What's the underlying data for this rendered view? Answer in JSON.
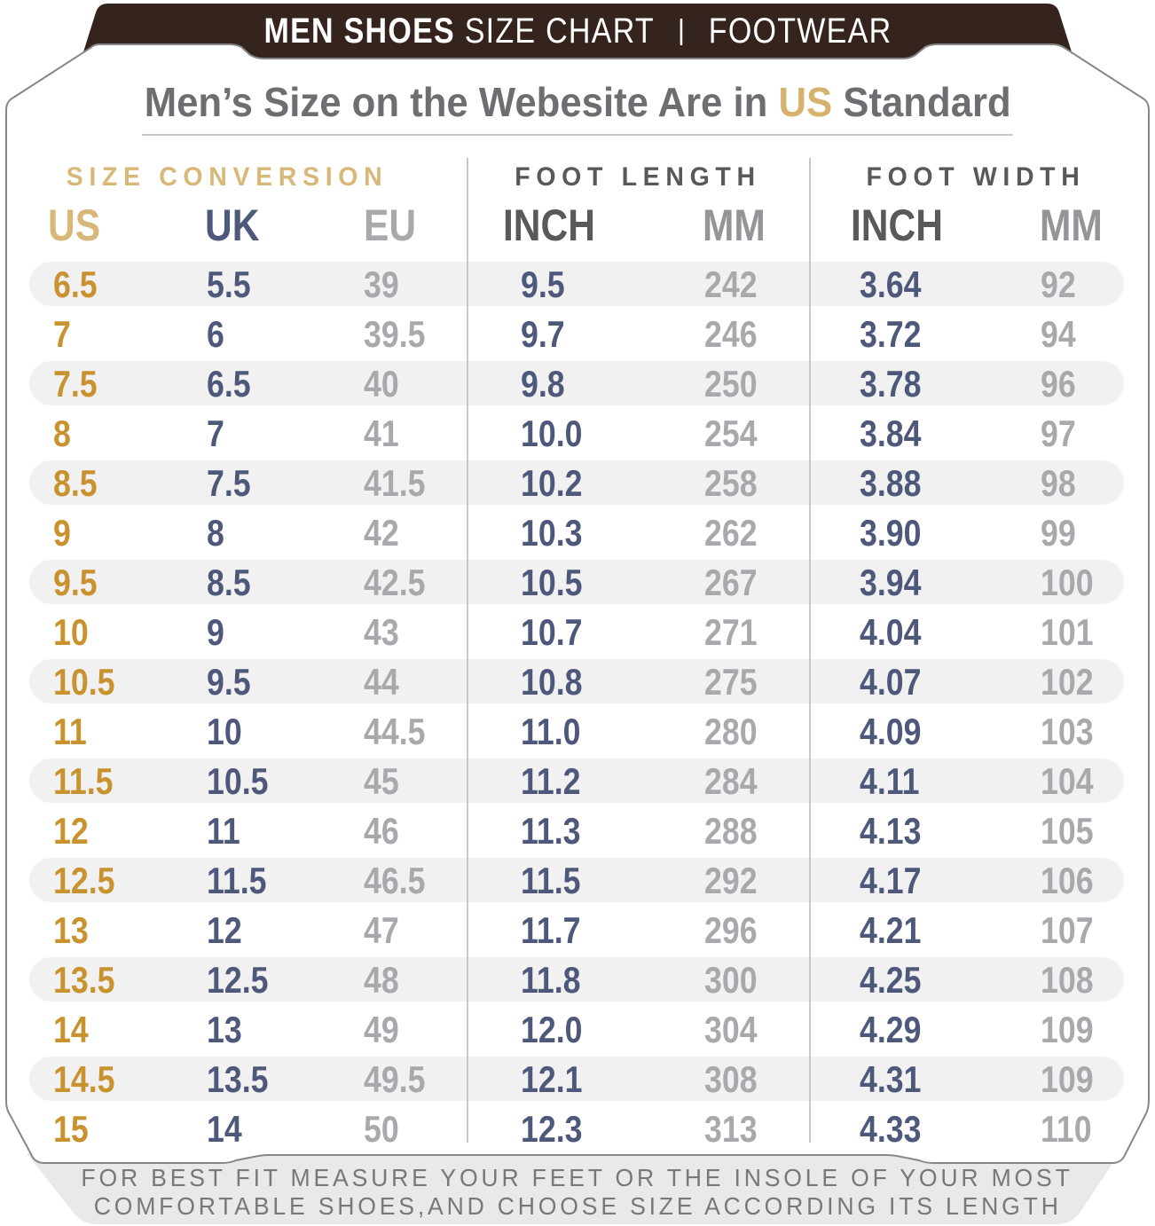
{
  "banner": {
    "brand_bold": "MEN SHOES",
    "brand_regular": "SIZE CHART",
    "divider": "|",
    "category": "FOOTWEAR"
  },
  "heading": {
    "pre": "Men’s Size on the Webesite Are in ",
    "accent": "US",
    "post": " Standard"
  },
  "chart_data": {
    "type": "table",
    "title": "MEN SHOES SIZE CHART | FOOTWEAR",
    "subtitle": "Men’s Size on the Webesite Are in US Standard",
    "column_groups": [
      "SIZE CONVERSION",
      "FOOT LENGTH",
      "FOOT WIDTH"
    ],
    "columns": [
      "US",
      "UK",
      "EU",
      "INCH",
      "MM",
      "INCH",
      "MM"
    ],
    "rows": [
      [
        "6.5",
        "5.5",
        "39",
        "9.5",
        "242",
        "3.64",
        "92"
      ],
      [
        "7",
        "6",
        "39.5",
        "9.7",
        "246",
        "3.72",
        "94"
      ],
      [
        "7.5",
        "6.5",
        "40",
        "9.8",
        "250",
        "3.78",
        "96"
      ],
      [
        "8",
        "7",
        "41",
        "10.0",
        "254",
        "3.84",
        "97"
      ],
      [
        "8.5",
        "7.5",
        "41.5",
        "10.2",
        "258",
        "3.88",
        "98"
      ],
      [
        "9",
        "8",
        "42",
        "10.3",
        "262",
        "3.90",
        "99"
      ],
      [
        "9.5",
        "8.5",
        "42.5",
        "10.5",
        "267",
        "3.94",
        "100"
      ],
      [
        "10",
        "9",
        "43",
        "10.7",
        "271",
        "4.04",
        "101"
      ],
      [
        "10.5",
        "9.5",
        "44",
        "10.8",
        "275",
        "4.07",
        "102"
      ],
      [
        "11",
        "10",
        "44.5",
        "11.0",
        "280",
        "4.09",
        "103"
      ],
      [
        "11.5",
        "10.5",
        "45",
        "11.2",
        "284",
        "4.11",
        "104"
      ],
      [
        "12",
        "11",
        "46",
        "11.3",
        "288",
        "4.13",
        "105"
      ],
      [
        "12.5",
        "11.5",
        "46.5",
        "11.5",
        "292",
        "4.17",
        "106"
      ],
      [
        "13",
        "12",
        "47",
        "11.7",
        "296",
        "4.21",
        "107"
      ],
      [
        "13.5",
        "12.5",
        "48",
        "11.8",
        "300",
        "4.25",
        "108"
      ],
      [
        "14",
        "13",
        "49",
        "12.0",
        "304",
        "4.29",
        "109"
      ],
      [
        "14.5",
        "13.5",
        "49.5",
        "12.1",
        "308",
        "4.31",
        "109"
      ],
      [
        "15",
        "14",
        "50",
        "12.3",
        "313",
        "4.33",
        "110"
      ]
    ]
  },
  "footer": {
    "line1": "FOR BEST FIT MEASURE YOUR FEET OR THE INSOLE OF YOUR MOST",
    "line2": "COMFORTABLE SHOES,AND CHOOSE SIZE ACCORDING ITS LENGTH"
  },
  "colors": {
    "banner_bg": "#35241D",
    "accent_gold_header": "#D8B878",
    "us_value_gold": "#C8932F",
    "slate_blue": "#4E587B",
    "light_gray_value": "#A7A9AC",
    "dark_gray_header": "#58595B",
    "mm_header_gray": "#939598",
    "title_gray": "#6D6E71",
    "row_stripe": "#F1F1F2",
    "footer_bg": "#E9E9E8",
    "card_border": "#85878A"
  }
}
